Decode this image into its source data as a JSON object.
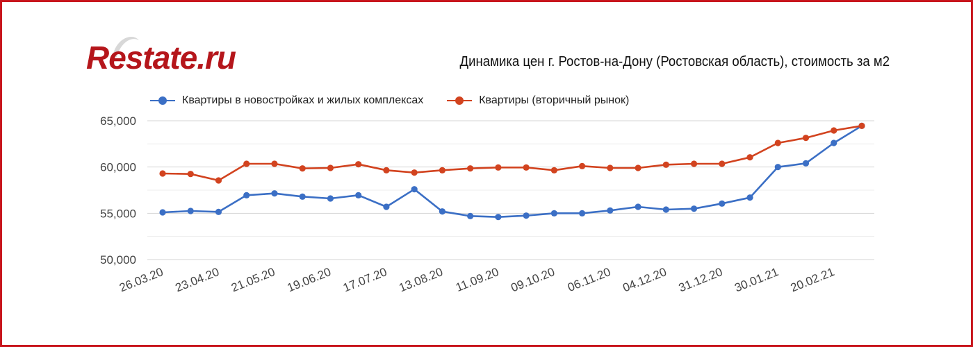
{
  "logo": {
    "text": "Restate.ru"
  },
  "chart_data": {
    "type": "line",
    "title": "Динамика цен г. Ростов-на-Дону (Ростовская область), стоимость за м2",
    "xlabel": "",
    "ylabel": "",
    "ylim": [
      50000,
      65000
    ],
    "yticks": [
      50000,
      55000,
      60000,
      65000
    ],
    "ytick_labels": [
      "50,000",
      "55,000",
      "60,000",
      "65,000"
    ],
    "xtick_labels": [
      "26.03.20",
      "23.04.20",
      "21.05.20",
      "19.06.20",
      "17.07.20",
      "13.08.20",
      "11.09.20",
      "09.10.20",
      "06.11.20",
      "04.12.20",
      "31.12.20",
      "30.01.21",
      "20.02.21"
    ],
    "grid": true,
    "legend_position": "top",
    "series": [
      {
        "name": "Квартиры в новостройках и жилых комплексах",
        "color": "#3b6fc5",
        "values": [
          55100,
          55250,
          55150,
          56950,
          57150,
          56800,
          56600,
          56950,
          55700,
          57600,
          55200,
          54700,
          54600,
          54750,
          55000,
          55000,
          55300,
          55700,
          55400,
          55500,
          56050,
          56700,
          60000,
          60400,
          62600,
          64450
        ]
      },
      {
        "name": "Квартиры (вторичный рынок)",
        "color": "#d2431f",
        "values": [
          59300,
          59250,
          58550,
          60350,
          60350,
          59850,
          59900,
          60300,
          59650,
          59400,
          59650,
          59850,
          59950,
          59950,
          59650,
          60100,
          59900,
          59900,
          60250,
          60350,
          60350,
          61050,
          62600,
          63150,
          63950,
          64450
        ]
      }
    ]
  }
}
